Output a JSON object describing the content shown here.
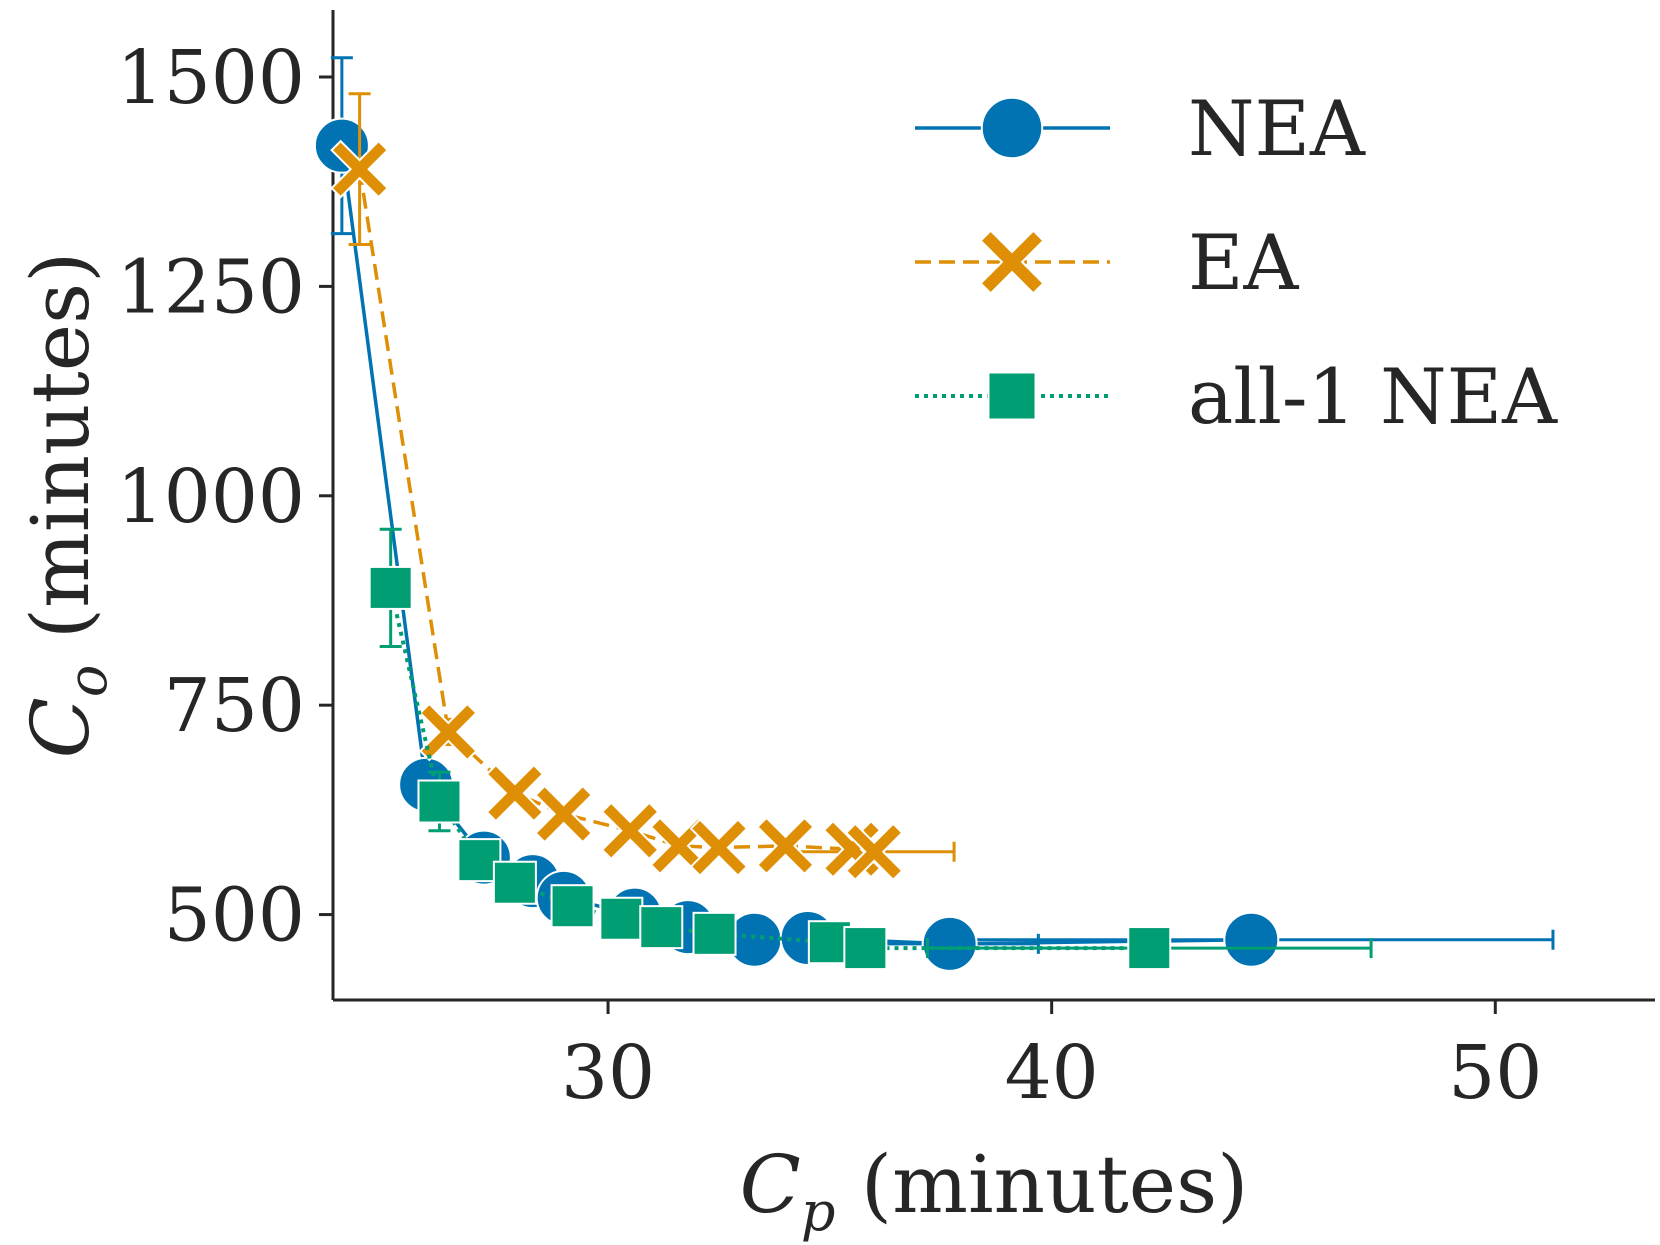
{
  "chart_data": {
    "type": "line",
    "title": "",
    "xlabel": "C_p (minutes)",
    "ylabel": "C_o (minutes)",
    "xlabel_parts": {
      "symbol": "C",
      "subscript": "p",
      "unit": "(minutes)"
    },
    "ylabel_parts": {
      "symbol": "C",
      "subscript": "o",
      "unit": "(minutes)"
    },
    "xlim": [
      23.8,
      53.6
    ],
    "ylim": [
      398,
      1580
    ],
    "xticks": [
      30,
      40,
      50
    ],
    "yticks": [
      500,
      750,
      1000,
      1250,
      1500
    ],
    "legend_position": "top-right",
    "series": [
      {
        "name": "NEA",
        "color": "#0173b2",
        "linestyle": "solid",
        "marker": "circle",
        "points": [
          {
            "x": 24.0,
            "y": 1418,
            "xerr": 0,
            "yerr": 105
          },
          {
            "x": 25.9,
            "y": 655,
            "xerr": 0,
            "yerr": 25
          },
          {
            "x": 27.2,
            "y": 568,
            "xerr": 0,
            "yerr": 10
          },
          {
            "x": 28.3,
            "y": 540,
            "xerr": 0,
            "yerr": 8
          },
          {
            "x": 29.0,
            "y": 520,
            "xerr": 0,
            "yerr": 6
          },
          {
            "x": 30.6,
            "y": 500,
            "xerr": 0,
            "yerr": 5
          },
          {
            "x": 31.8,
            "y": 485,
            "xerr": 0,
            "yerr": 4
          },
          {
            "x": 33.3,
            "y": 470,
            "xerr": 0,
            "yerr": 3
          },
          {
            "x": 34.5,
            "y": 472,
            "xerr": 0,
            "yerr": 3
          },
          {
            "x": 37.7,
            "y": 465,
            "xerr": 2.0,
            "yerr": 3
          },
          {
            "x": 44.5,
            "y": 470,
            "xerr": 6.8,
            "yerr": 3
          }
        ]
      },
      {
        "name": "EA",
        "color": "#de8f05",
        "linestyle": "dashed",
        "marker": "x-filled",
        "points": [
          {
            "x": 24.4,
            "y": 1390,
            "xerr": 0,
            "yerr": 90
          },
          {
            "x": 26.4,
            "y": 718,
            "xerr": 0,
            "yerr": 15
          },
          {
            "x": 27.9,
            "y": 645,
            "xerr": 0,
            "yerr": 10
          },
          {
            "x": 29.0,
            "y": 620,
            "xerr": 0,
            "yerr": 8
          },
          {
            "x": 30.5,
            "y": 600,
            "xerr": 0,
            "yerr": 6
          },
          {
            "x": 31.6,
            "y": 582,
            "xerr": 0,
            "yerr": 5
          },
          {
            "x": 32.5,
            "y": 580,
            "xerr": 0,
            "yerr": 5
          },
          {
            "x": 34.0,
            "y": 582,
            "xerr": 0,
            "yerr": 5
          },
          {
            "x": 35.5,
            "y": 578,
            "xerr": 0,
            "yerr": 5
          },
          {
            "x": 36.0,
            "y": 575,
            "xerr": 1.8,
            "yerr": 5
          }
        ]
      },
      {
        "name": "all-1 NEA",
        "color": "#029e73",
        "linestyle": "dotted",
        "marker": "square",
        "points": [
          {
            "x": 25.1,
            "y": 890,
            "xerr": 0,
            "yerr": 70
          },
          {
            "x": 26.2,
            "y": 635,
            "xerr": 0,
            "yerr": 35
          },
          {
            "x": 27.1,
            "y": 565,
            "xerr": 0,
            "yerr": 10
          },
          {
            "x": 27.9,
            "y": 538,
            "xerr": 0,
            "yerr": 8
          },
          {
            "x": 29.2,
            "y": 510,
            "xerr": 0,
            "yerr": 6
          },
          {
            "x": 30.3,
            "y": 495,
            "xerr": 0,
            "yerr": 5
          },
          {
            "x": 31.2,
            "y": 485,
            "xerr": 0,
            "yerr": 4
          },
          {
            "x": 32.4,
            "y": 477,
            "xerr": 0,
            "yerr": 4
          },
          {
            "x": 35.0,
            "y": 467,
            "xerr": 0,
            "yerr": 3
          },
          {
            "x": 35.8,
            "y": 460,
            "xerr": 0,
            "yerr": 3
          },
          {
            "x": 42.2,
            "y": 460,
            "xerr": 5.0,
            "yerr": 3
          }
        ]
      }
    ]
  }
}
